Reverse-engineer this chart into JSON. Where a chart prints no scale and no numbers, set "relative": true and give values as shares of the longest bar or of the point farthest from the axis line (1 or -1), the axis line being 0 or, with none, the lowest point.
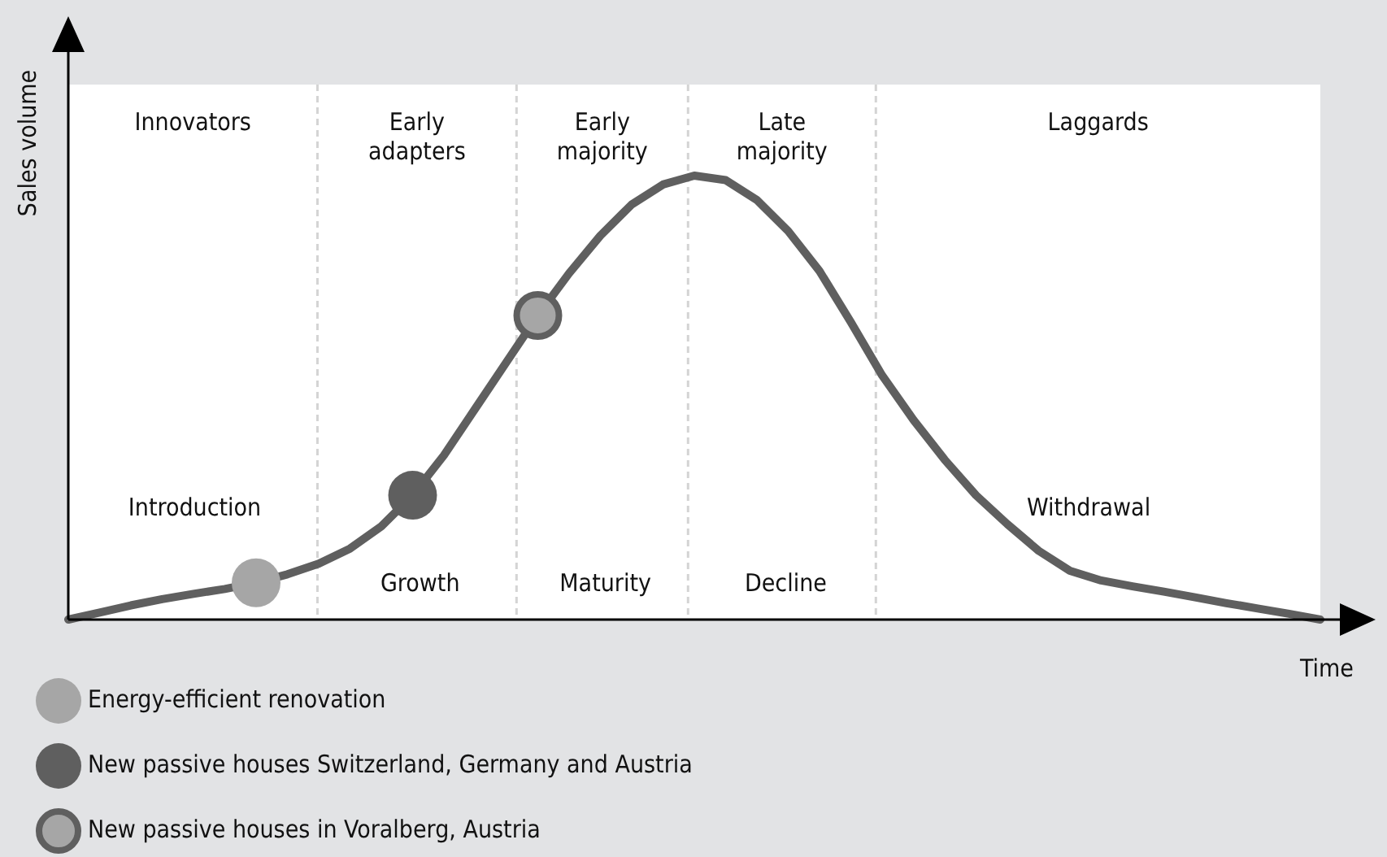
{
  "chart_data": {
    "type": "line",
    "relative": true,
    "xlabel": "Time",
    "ylabel": "Sales volume",
    "legend": "bottom left",
    "categories": [
      null,
      null,
      null,
      null,
      null,
      null,
      null,
      null,
      null,
      null,
      null,
      null,
      null,
      null,
      null,
      null,
      null,
      null,
      null,
      null,
      null,
      null,
      null,
      null,
      null,
      null,
      null,
      null,
      null,
      null,
      null,
      null,
      null,
      null,
      null,
      null,
      null,
      null,
      null,
      null,
      null
    ],
    "series": [
      {
        "color": "#5f5f5f",
        "marker": "none",
        "values": [
          0,
          0.016,
          0.032,
          0.046,
          0.058,
          0.069,
          0.083,
          0.102,
          0.126,
          0.16,
          0.21,
          0.28,
          0.37,
          0.475,
          0.58,
          0.685,
          0.78,
          0.865,
          0.935,
          0.98,
          1,
          0.99,
          0.945,
          0.875,
          0.785,
          0.67,
          0.55,
          0.45,
          0.36,
          0.28,
          0.215,
          0.155,
          0.11,
          0.088,
          0.075,
          0.063,
          0.05,
          0.037,
          0.025,
          0.013,
          0
        ]
      },
      {
        "name": "Energy-efficient renovation",
        "color": "#a6a6a6",
        "marker": "circle",
        "values": [
          null,
          null,
          null,
          null,
          null,
          null,
          0.083,
          null,
          null,
          null,
          null,
          null,
          null,
          null,
          null,
          null,
          null,
          null,
          null,
          null,
          null,
          null,
          null,
          null,
          null,
          null,
          null,
          null,
          null,
          null,
          null,
          null,
          null,
          null,
          null,
          null,
          null,
          null,
          null,
          null,
          null
        ]
      },
      {
        "name": "New passive houses Switzerland, Germany and Austria",
        "color": "#5f5f5f",
        "marker": "circle",
        "values": [
          null,
          null,
          null,
          null,
          null,
          null,
          null,
          null,
          null,
          null,
          null,
          0.28,
          null,
          null,
          null,
          null,
          null,
          null,
          null,
          null,
          null,
          null,
          null,
          null,
          null,
          null,
          null,
          null,
          null,
          null,
          null,
          null,
          null,
          null,
          null,
          null,
          null,
          null,
          null,
          null,
          null
        ]
      },
      {
        "name": "New passive houses in Voralberg, Austria",
        "color": "#a6a6a6",
        "marker": "circle",
        "values": [
          null,
          null,
          null,
          null,
          null,
          null,
          null,
          null,
          null,
          null,
          null,
          null,
          null,
          null,
          null,
          0.685,
          null,
          null,
          null,
          null,
          null,
          null,
          null,
          null,
          null,
          null,
          null,
          null,
          null,
          null,
          null,
          null,
          null,
          null,
          null,
          null,
          null,
          null,
          null,
          null,
          null
        ]
      }
    ],
    "annotations": [
      "Innovators",
      "Early\nadapters",
      "Early\nmajority",
      "Late\nmajority",
      "Laggards",
      "Introduction",
      "Growth",
      "Maturity",
      "Decline",
      "Withdrawal"
    ]
  }
}
